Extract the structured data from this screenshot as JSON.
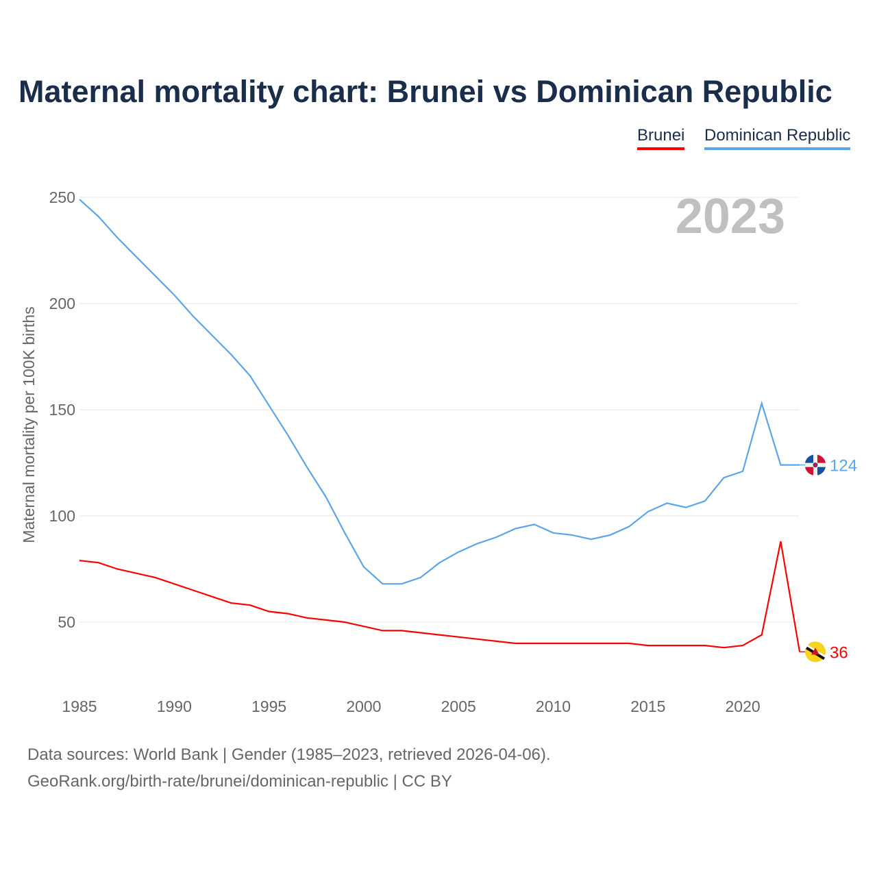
{
  "chart_data": {
    "type": "line",
    "title": "Maternal mortality chart: Brunei vs Dominican Republic",
    "ylabel": "Maternal mortality per 100K births",
    "xlabel": "",
    "year_label": "2023",
    "x": [
      1985,
      1986,
      1987,
      1988,
      1989,
      1990,
      1991,
      1992,
      1993,
      1994,
      1995,
      1996,
      1997,
      1998,
      1999,
      2000,
      2001,
      2002,
      2003,
      2004,
      2005,
      2006,
      2007,
      2008,
      2009,
      2010,
      2011,
      2012,
      2013,
      2014,
      2015,
      2016,
      2017,
      2018,
      2019,
      2020,
      2021,
      2022,
      2023
    ],
    "xticks": [
      "1985",
      "1990",
      "1995",
      "2000",
      "2005",
      "2010",
      "2015",
      "2020"
    ],
    "yticks": [
      "50",
      "100",
      "150",
      "200",
      "250"
    ],
    "ylim": [
      20,
      260
    ],
    "xlim": [
      1985,
      2023
    ],
    "grid": true,
    "legend_position": "top-right",
    "series": [
      {
        "name": "Brunei",
        "color": "#ff0000",
        "end_label": "36",
        "values": [
          79,
          78,
          75,
          73,
          71,
          68,
          65,
          62,
          59,
          58,
          55,
          54,
          52,
          51,
          50,
          48,
          46,
          46,
          45,
          44,
          43,
          42,
          41,
          40,
          40,
          40,
          40,
          40,
          40,
          40,
          39,
          39,
          39,
          39,
          38,
          39,
          44,
          88,
          36
        ]
      },
      {
        "name": "Dominican Republic",
        "color": "#5aa5ea",
        "end_label": "124",
        "values": [
          249,
          241,
          231,
          222,
          213,
          204,
          194,
          185,
          176,
          166,
          152,
          138,
          123,
          109,
          92,
          76,
          68,
          68,
          71,
          78,
          83,
          87,
          90,
          94,
          96,
          92,
          91,
          89,
          91,
          95,
          102,
          106,
          104,
          107,
          118,
          121,
          153,
          124,
          124
        ]
      }
    ]
  },
  "footer": {
    "line1": "Data sources: World Bank | Gender (1985–2023, retrieved 2026-04-06).",
    "line2": "GeoRank.org/birth-rate/brunei/dominican-republic | CC BY"
  }
}
